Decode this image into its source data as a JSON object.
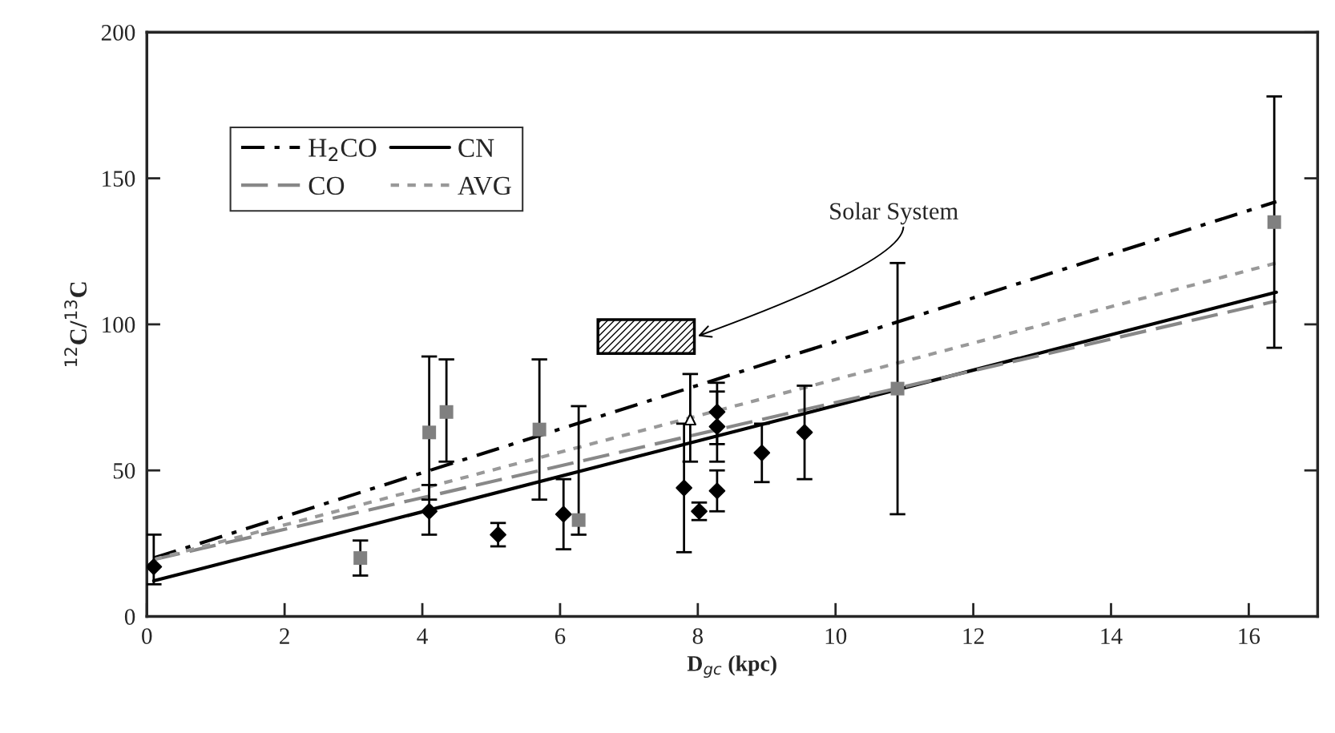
{
  "chart_data": {
    "type": "scatter",
    "xlabel": "D$_{gc}$ (kpc)",
    "ylabel": "$^{12}$C/$^{13}$C",
    "xlim": [
      0,
      17
    ],
    "ylim": [
      0,
      200
    ],
    "xticks": [
      0,
      2,
      4,
      6,
      8,
      10,
      12,
      14,
      16
    ],
    "yticks": [
      0,
      50,
      100,
      150,
      200
    ],
    "grid": false,
    "legend": "top left",
    "annotations": [
      {
        "text": "Solar System",
        "x": 8.0,
        "y": 96
      }
    ],
    "series": [
      {
        "name": "H$_{2}$CO",
        "type": "line",
        "color": "#000000",
        "line_style": "dashdot",
        "x": [
          0.1,
          16.4
        ],
        "values": [
          20,
          142
        ]
      },
      {
        "name": "CN",
        "type": "line",
        "color": "#000000",
        "line_style": "solid",
        "x": [
          0.1,
          16.4
        ],
        "values": [
          12.2,
          111
        ]
      },
      {
        "name": "CO",
        "type": "line",
        "color": "#888888",
        "line_style": "dashed",
        "x": [
          0.1,
          16.4
        ],
        "values": [
          19.5,
          108
        ]
      },
      {
        "name": "AVG",
        "type": "line",
        "color": "#999999",
        "line_style": "dotted",
        "x": [
          0.1,
          16.4
        ],
        "values": [
          19.5,
          121
        ]
      },
      {
        "type": "bar",
        "color": "#000000",
        "x": [
          7.25
        ],
        "base": [
          90
        ],
        "values": [
          11.6
        ]
      },
      {
        "marker": "square",
        "color": "#808080",
        "x": [
          3.1,
          4.1,
          4.35,
          5.7,
          6.27,
          10.9,
          16.37
        ],
        "values": [
          20,
          63,
          70,
          64,
          33,
          78,
          135
        ],
        "errors": [
          [
            14,
            26
          ],
          [
            40,
            89
          ],
          [
            53,
            88
          ],
          [
            40,
            88
          ],
          [
            28,
            72
          ],
          [
            35,
            121
          ],
          [
            92,
            178
          ]
        ]
      },
      {
        "marker": "diamond",
        "color": "#000000",
        "x": [
          0.1,
          4.1,
          5.1,
          6.05,
          7.8,
          8.02,
          8.28,
          8.28,
          8.28,
          8.93,
          9.55
        ],
        "values": [
          17,
          36,
          28,
          35,
          44,
          36,
          70,
          65,
          43,
          56,
          63
        ],
        "errors": [
          [
            11,
            28
          ],
          [
            28,
            45
          ],
          [
            24,
            32
          ],
          [
            23,
            47
          ],
          [
            22,
            66
          ],
          [
            33,
            39
          ],
          [
            59,
            80
          ],
          [
            53,
            77
          ],
          [
            36,
            50
          ],
          [
            46,
            66
          ],
          [
            47,
            79
          ]
        ]
      },
      {
        "marker": "triangle",
        "color": "#ffffff",
        "x": [
          7.89
        ],
        "values": [
          67.5
        ],
        "errors": [
          [
            53,
            83
          ]
        ]
      }
    ]
  }
}
